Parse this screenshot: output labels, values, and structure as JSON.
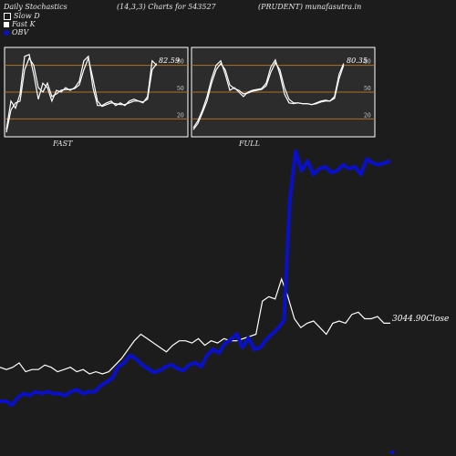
{
  "header": {
    "title": "Daily Stochastics",
    "params": "(14,3,3) Charts for 543527",
    "site": "(PRUDENT) munafasutra.in"
  },
  "legend": [
    {
      "label": "Slow  D",
      "icon": "open-square-icon"
    },
    {
      "label": "Fast K",
      "icon": "filled-square-icon"
    },
    {
      "label": "OBV",
      "icon": "blue-dot-icon",
      "color": "#0a10c8"
    }
  ],
  "panels": {
    "fast": {
      "label": "FAST",
      "value_label": "82.59"
    },
    "full": {
      "label": "FULL",
      "value_label": "80.35"
    },
    "gridlines": [
      80,
      50,
      20
    ],
    "tick_labels": [
      "80",
      "50",
      "20"
    ]
  },
  "main": {
    "close_label": "3044.90Close"
  },
  "colors": {
    "background": "#1c1c1c",
    "panel_bg": "#2c2c2c",
    "gridline": "#b07020",
    "obv": "#0a10c8",
    "price": "#ffffff"
  },
  "chart_data": [
    {
      "type": "line",
      "title": "FAST",
      "ylim": [
        0,
        100
      ],
      "gridlines": [
        20,
        50,
        80
      ],
      "series": [
        {
          "values": [
            8,
            40,
            32,
            48,
            90,
            92,
            70,
            42,
            60,
            55,
            40,
            52,
            50,
            55,
            52,
            55,
            62,
            85,
            90,
            55,
            35,
            35,
            38,
            40,
            35,
            38,
            35,
            40,
            42,
            40,
            38,
            45,
            85,
            80
          ]
        },
        {
          "values": [
            5,
            30,
            38,
            40,
            75,
            88,
            80,
            55,
            50,
            60,
            45,
            48,
            52,
            53,
            53,
            54,
            58,
            75,
            88,
            65,
            40,
            34,
            36,
            38,
            37,
            36,
            36,
            38,
            40,
            40,
            39,
            42,
            75,
            82
          ]
        }
      ]
    },
    {
      "type": "line",
      "title": "FULL",
      "ylim": [
        0,
        100
      ],
      "gridlines": [
        20,
        50,
        80
      ],
      "series": [
        {
          "values": [
            10,
            18,
            30,
            45,
            65,
            80,
            85,
            70,
            52,
            55,
            50,
            45,
            50,
            52,
            53,
            54,
            60,
            78,
            86,
            70,
            48,
            38,
            37,
            38,
            37,
            37,
            36,
            38,
            40,
            41,
            40,
            45,
            70,
            82
          ]
        },
        {
          "values": [
            8,
            15,
            27,
            40,
            60,
            75,
            82,
            75,
            58,
            54,
            52,
            48,
            49,
            51,
            52,
            53,
            57,
            72,
            83,
            75,
            55,
            42,
            38,
            38,
            37,
            37,
            36,
            37,
            39,
            40,
            40,
            43,
            65,
            80
          ]
        }
      ]
    },
    {
      "type": "line",
      "title": "",
      "series": [
        {
          "values": [
            80,
            80,
            78,
            82,
            84,
            83,
            85,
            84,
            85,
            84,
            84,
            83,
            85,
            86,
            84,
            85,
            85,
            88,
            90,
            92,
            98,
            100,
            104,
            102,
            99,
            97,
            95,
            96,
            98,
            99,
            97,
            96,
            99,
            100,
            98,
            104,
            107,
            105,
            110,
            112,
            115,
            108,
            113,
            107,
            108,
            112,
            115,
            118,
            122,
            185,
            210,
            200,
            205,
            198,
            201,
            202,
            199,
            200,
            203,
            201,
            202,
            198,
            206,
            204,
            203,
            204,
            205
          ]
        },
        {
          "values": [
            100,
            99,
            100,
            102,
            98,
            99,
            99,
            101,
            100,
            98,
            99,
            100,
            98,
            99,
            97,
            98,
            97,
            98,
            101,
            104,
            108,
            112,
            115,
            113,
            111,
            109,
            107,
            110,
            112,
            112,
            111,
            113,
            110,
            112,
            111,
            113,
            112,
            112,
            113,
            114,
            115,
            130,
            132,
            131,
            140,
            132,
            122,
            118,
            120,
            121,
            118,
            115,
            120,
            121,
            120,
            124,
            125,
            122,
            122,
            123,
            120,
            120
          ]
        }
      ]
    }
  ]
}
